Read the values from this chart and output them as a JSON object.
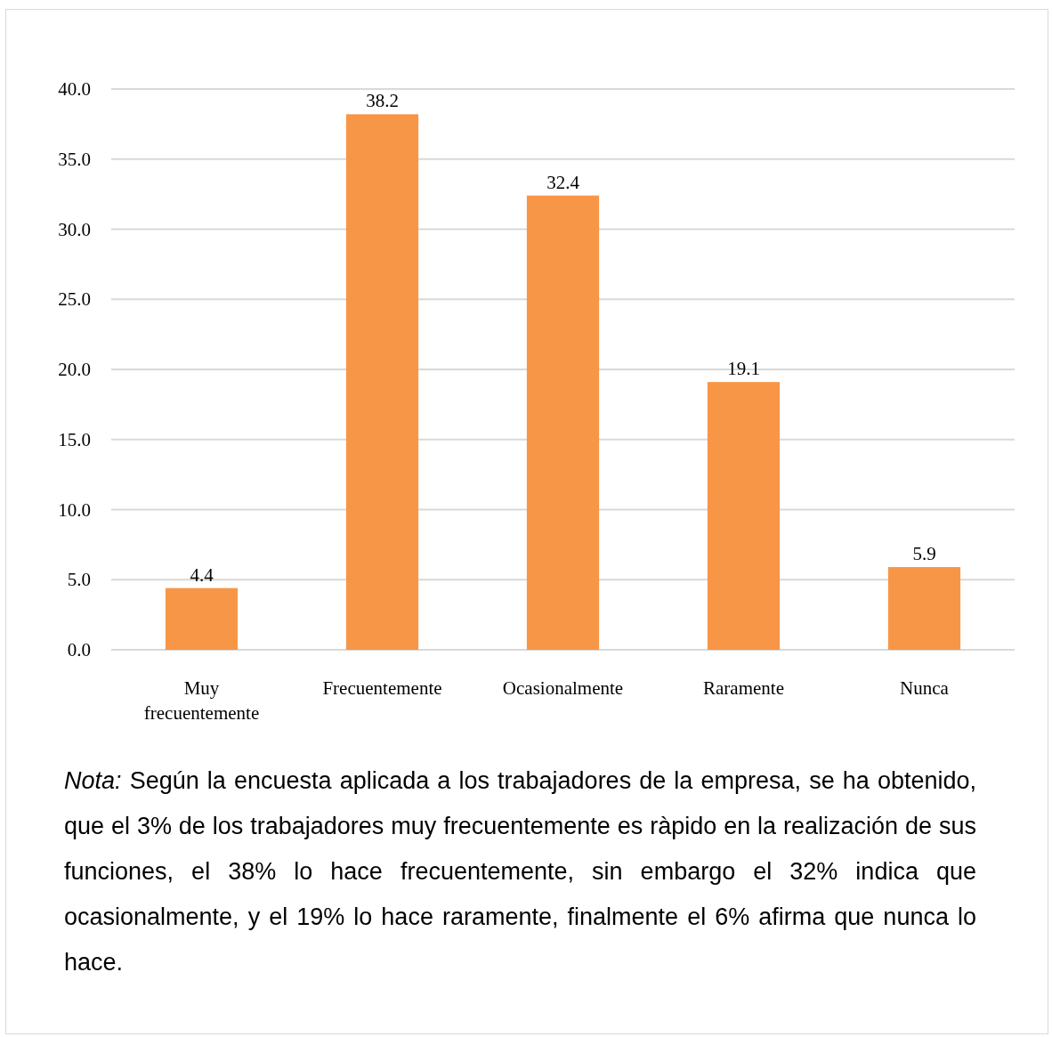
{
  "chart_data": {
    "type": "bar",
    "categories": [
      "Muy frecuentemente",
      "Frecuentemente",
      "Ocasionalmente",
      "Raramente",
      "Nunca"
    ],
    "values": [
      4.4,
      38.2,
      32.4,
      19.1,
      5.9
    ],
    "color": "#f79646",
    "ylim": [
      0,
      40
    ],
    "yticks": [
      {
        "value": 0,
        "label": "0.0"
      },
      {
        "value": 5,
        "label": "5.0"
      },
      {
        "value": 10,
        "label": "10.0"
      },
      {
        "value": 15,
        "label": "15.0"
      },
      {
        "value": 20,
        "label": "20.0"
      },
      {
        "value": 25,
        "label": "25.0"
      },
      {
        "value": 30,
        "label": "30.0"
      },
      {
        "value": 35,
        "label": "35.0"
      },
      {
        "value": 40,
        "label": "40.0"
      }
    ],
    "grid": "y",
    "data_labels": true,
    "annotations": [
      "Nota: Según la encuesta aplicada a los trabajadores de la empresa, se ha obtenido, que el 3% de los trabajadores muy frecuentemente es ràpido en la realización de sus funciones, el 38% lo hace frecuentemente, sin embargo el 32% indica que ocasionalmente, y el 19% lo hace raramente, finalmente el 6% afirma que nunca lo hace."
    ]
  }
}
